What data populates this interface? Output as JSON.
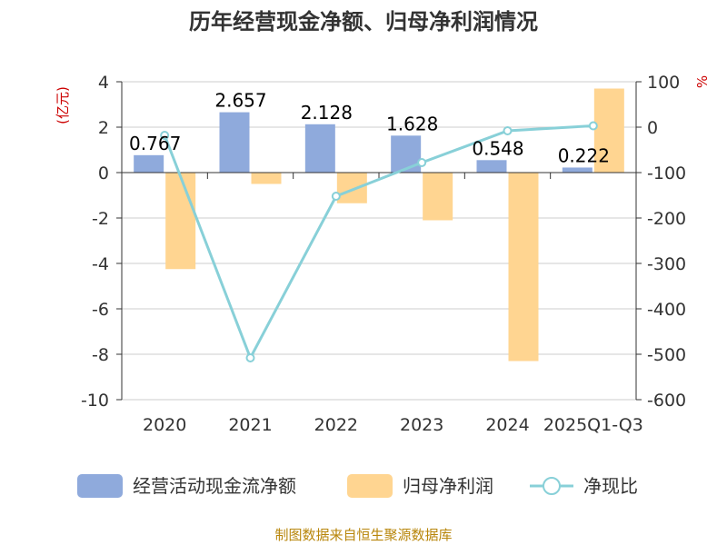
{
  "chart_data": {
    "type": "bar",
    "title": "历年经营现金净额、归母净利润情况",
    "categories": [
      "2020",
      "2021",
      "2022",
      "2023",
      "2024",
      "2025Q1-Q3"
    ],
    "series": [
      {
        "name": "经营活动现金流净额",
        "type": "bar",
        "axis": "left",
        "color": "#8faadc",
        "values": [
          0.767,
          2.657,
          2.128,
          1.628,
          0.548,
          0.222
        ],
        "data_labels": [
          "0.767",
          "2.657",
          "2.128",
          "1.628",
          "0.548",
          "0.222"
        ]
      },
      {
        "name": "归母净利润",
        "type": "bar",
        "axis": "left",
        "color": "#ffd591",
        "values": [
          -4.25,
          -0.5,
          -1.35,
          -2.1,
          -8.3,
          3.7
        ]
      },
      {
        "name": "净现比",
        "type": "line",
        "axis": "right",
        "color": "#88d0d8",
        "values": [
          -18,
          -508,
          -152,
          -78,
          -8,
          3
        ]
      }
    ],
    "y_left": {
      "unit": "(亿元)",
      "ylim": [
        -10,
        4
      ],
      "ticks": [
        "4",
        "2",
        "0",
        "-2",
        "-4",
        "-6",
        "-8",
        "-10"
      ]
    },
    "y_right": {
      "unit": "%",
      "ylim": [
        -600,
        100
      ],
      "ticks": [
        "100",
        "0",
        "-100",
        "-200",
        "-300",
        "-400",
        "-500",
        "-600"
      ]
    },
    "legend_position": "bottom",
    "grid": true
  },
  "source_text": "制图数据来自恒生聚源数据库"
}
